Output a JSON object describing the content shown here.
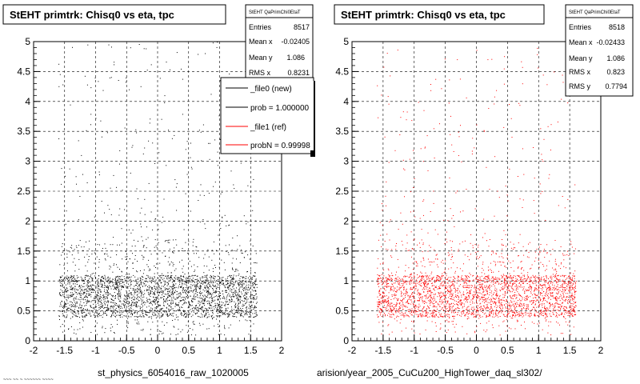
{
  "footer": {
    "left_label": "st_physics_6054016_raw_1020005",
    "right_label": "arision/year_2005_CuCu200_HighTower_daq_sl302/",
    "corner_text": "~~~ ~~ ~ ~~~~~~ ~~~~"
  },
  "legend": {
    "entries": [
      {
        "label": "_file0 (new)",
        "color": "#000000"
      },
      {
        "label": "prob = 1.000000",
        "color": "#000000"
      },
      {
        "label": "_file1 (ref)",
        "color": "#ff0000"
      },
      {
        "label": "probN = 0.99998",
        "color": "#ff0000"
      }
    ]
  },
  "chart_data": [
    {
      "type": "scatter",
      "title": "StEHT primtrk: Chisq0 vs eta, tpc",
      "stats_header": "StEHT QaPrimChi0EtaT",
      "stats": [
        {
          "label": "Entries",
          "value": "8517"
        },
        {
          "label": "Mean x",
          "value": "-0.02405"
        },
        {
          "label": "Mean y",
          "value": "1.086"
        },
        {
          "label": "RMS x",
          "value": "0.8231"
        }
      ],
      "color": "#000000",
      "xlim": [
        -2,
        2
      ],
      "ylim": [
        0,
        5
      ],
      "xticks": [
        "-2",
        "-1.5",
        "-1",
        "-0.5",
        "0",
        "0.5",
        "1",
        "1.5",
        "2"
      ],
      "yticks": [
        "0",
        "0.5",
        "1",
        "1.5",
        "2",
        "2.5",
        "3",
        "3.5",
        "4",
        "4.5",
        "5"
      ],
      "grid": true,
      "density": {
        "x_range": [
          -1.6,
          1.6
        ],
        "core_y_range": [
          0.4,
          1.1
        ],
        "tail_max_y": 5
      }
    },
    {
      "type": "scatter",
      "title": "StEHT primtrk: Chisq0 vs eta, tpc",
      "stats_header": "StEHT QaPrimChi0EtaT",
      "stats": [
        {
          "label": "Entries",
          "value": "8518"
        },
        {
          "label": "Mean x",
          "value": "-0.02433"
        },
        {
          "label": "Mean y",
          "value": "1.086"
        },
        {
          "label": "RMS x",
          "value": "0.823"
        },
        {
          "label": "RMS y",
          "value": "0.7794"
        }
      ],
      "color": "#ff0000",
      "xlim": [
        -2,
        2
      ],
      "ylim": [
        0,
        5
      ],
      "xticks": [
        "-2",
        "-1.5",
        "-1",
        "-0.5",
        "0",
        "0.5",
        "1",
        "1.5",
        "2"
      ],
      "yticks": [
        "0",
        "0.5",
        "1",
        "1.5",
        "2",
        "2.5",
        "3",
        "3.5",
        "4",
        "4.5",
        "5"
      ],
      "grid": true,
      "density": {
        "x_range": [
          -1.6,
          1.6
        ],
        "core_y_range": [
          0.4,
          1.1
        ],
        "tail_max_y": 5
      }
    }
  ]
}
